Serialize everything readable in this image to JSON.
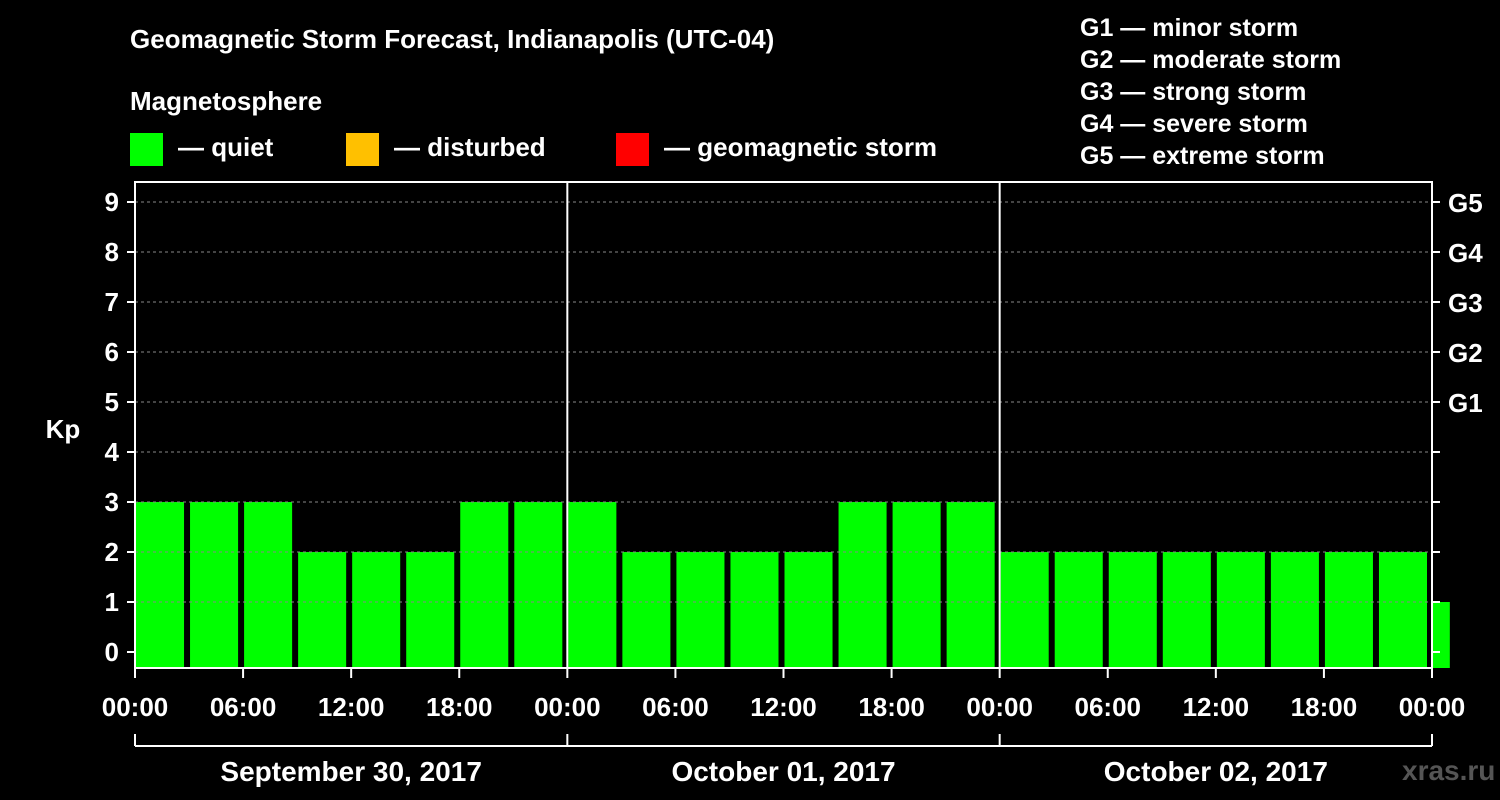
{
  "chart_data": {
    "type": "bar",
    "title": "Geomagnetic Storm Forecast, Indianapolis (UTC-04)",
    "subtitle": "Magnetosphere",
    "ylabel": "Kp",
    "ylim": [
      0,
      9
    ],
    "yticks": [
      "0",
      "1",
      "2",
      "3",
      "4",
      "5",
      "6",
      "7",
      "8",
      "9"
    ],
    "right_ticks": [
      {
        "kp": 5,
        "label": "G1"
      },
      {
        "kp": 6,
        "label": "G2"
      },
      {
        "kp": 7,
        "label": "G3"
      },
      {
        "kp": 8,
        "label": "G4"
      },
      {
        "kp": 9,
        "label": "G5"
      }
    ],
    "xticks": [
      "00:00",
      "06:00",
      "12:00",
      "18:00",
      "00:00",
      "06:00",
      "12:00",
      "18:00",
      "00:00",
      "06:00",
      "12:00",
      "18:00",
      "00:00"
    ],
    "days": [
      "September 30, 2017",
      "October 01, 2017",
      "October 02, 2017"
    ],
    "interval_hours": 3,
    "values": [
      3,
      3,
      3,
      2,
      2,
      2,
      3,
      3,
      3,
      2,
      2,
      2,
      2,
      3,
      3,
      3,
      2,
      2,
      2,
      2,
      2,
      2,
      2,
      2,
      1
    ],
    "last_bar_fraction": 0.35,
    "legend": [
      {
        "label": "— quiet",
        "color": "#00ff00"
      },
      {
        "label": "— disturbed",
        "color": "#ffc000"
      },
      {
        "label": "— geomagnetic storm",
        "color": "#ff0000"
      }
    ],
    "g_scale": [
      "G1 — minor storm",
      "G2 — moderate storm",
      "G3 — strong storm",
      "G4 — severe storm",
      "G5 — extreme storm"
    ],
    "bar_color": "#00ff00",
    "background": "#000000",
    "grid": true
  },
  "watermark": "xras.ru"
}
